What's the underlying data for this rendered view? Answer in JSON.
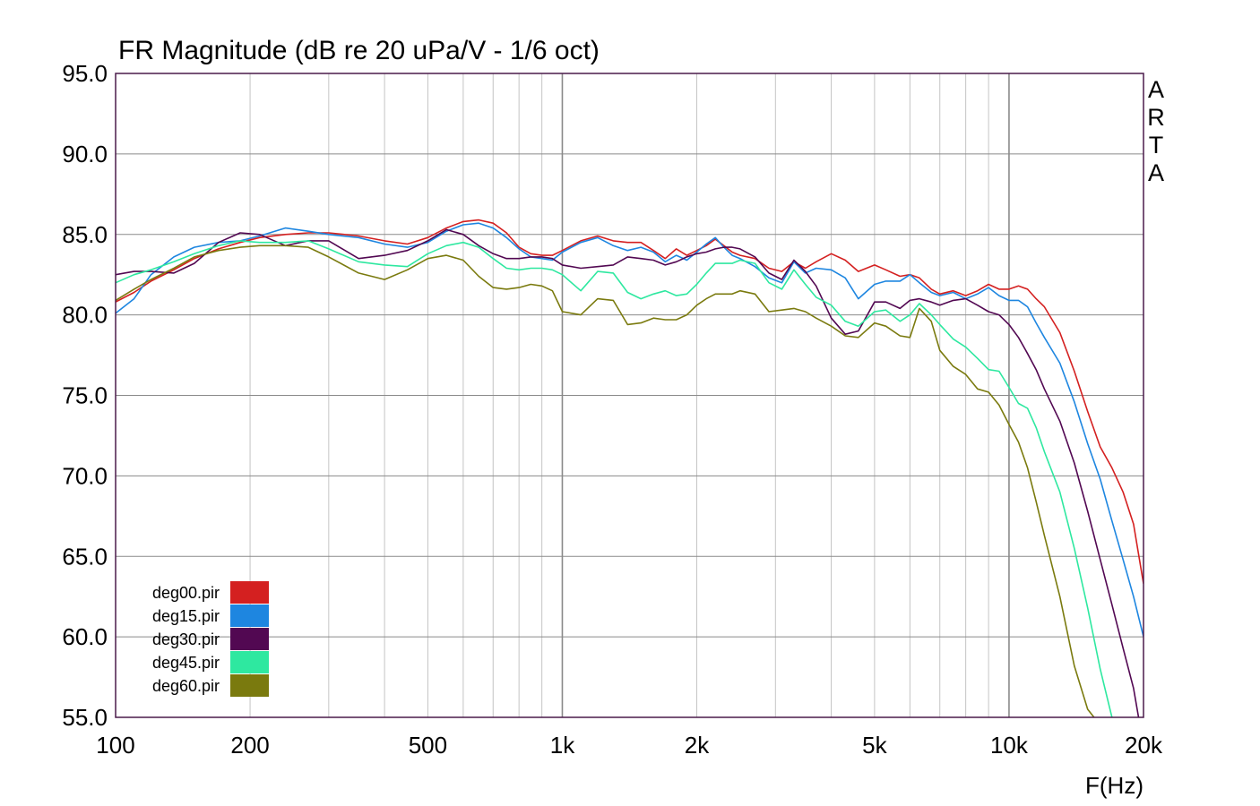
{
  "chart_data": {
    "type": "line",
    "title": "FR Magnitude (dB re 20 uPa/V - 1/6 oct)",
    "xlabel": "F(Hz)",
    "ylabel": "",
    "watermark": "ARTA",
    "x_scale": "log",
    "xlim": [
      100,
      20000
    ],
    "ylim": [
      55,
      95
    ],
    "grid": true,
    "legend_position": "bottom-left",
    "x_ticks": [
      {
        "value": 100,
        "label": "100"
      },
      {
        "value": 200,
        "label": "200"
      },
      {
        "value": 500,
        "label": "500"
      },
      {
        "value": 1000,
        "label": "1k"
      },
      {
        "value": 2000,
        "label": "2k"
      },
      {
        "value": 5000,
        "label": "5k"
      },
      {
        "value": 10000,
        "label": "10k"
      },
      {
        "value": 20000,
        "label": "20k"
      }
    ],
    "y_ticks": [
      {
        "value": 95,
        "label": "95.0"
      },
      {
        "value": 90,
        "label": "90.0"
      },
      {
        "value": 85,
        "label": "85.0"
      },
      {
        "value": 80,
        "label": "80.0"
      },
      {
        "value": 75,
        "label": "75.0"
      },
      {
        "value": 70,
        "label": "70.0"
      },
      {
        "value": 65,
        "label": "65.0"
      },
      {
        "value": 60,
        "label": "60.0"
      },
      {
        "value": 55,
        "label": "55.0"
      }
    ],
    "series": [
      {
        "name": "deg00.pir",
        "color": "#d42020",
        "x": [
          100,
          110,
          120,
          135,
          150,
          170,
          190,
          210,
          240,
          270,
          300,
          350,
          400,
          450,
          500,
          550,
          600,
          650,
          700,
          750,
          800,
          850,
          900,
          950,
          1000,
          1100,
          1200,
          1300,
          1400,
          1500,
          1600,
          1700,
          1800,
          1900,
          2000,
          2100,
          2200,
          2300,
          2400,
          2500,
          2700,
          2900,
          3100,
          3300,
          3500,
          3700,
          4000,
          4300,
          4600,
          5000,
          5300,
          5700,
          6000,
          6300,
          6700,
          7000,
          7500,
          8000,
          8500,
          9000,
          9500,
          10000,
          10500,
          11000,
          11500,
          12000,
          13000,
          14000,
          15000,
          16000,
          17000,
          18000,
          19000,
          20000
        ],
        "y": [
          80.8,
          81.4,
          82.1,
          82.8,
          83.5,
          84.1,
          84.5,
          84.8,
          85.0,
          85.1,
          85.1,
          84.9,
          84.6,
          84.4,
          84.8,
          85.4,
          85.8,
          85.9,
          85.7,
          85.1,
          84.2,
          83.8,
          83.7,
          83.7,
          84.0,
          84.6,
          84.9,
          84.6,
          84.5,
          84.5,
          84.0,
          83.5,
          84.1,
          83.7,
          84.0,
          84.3,
          84.7,
          84.3,
          83.9,
          83.7,
          83.5,
          82.9,
          82.7,
          83.3,
          82.9,
          83.3,
          83.8,
          83.4,
          82.7,
          83.1,
          82.8,
          82.4,
          82.5,
          82.3,
          81.6,
          81.3,
          81.5,
          81.2,
          81.5,
          81.9,
          81.6,
          81.6,
          81.8,
          81.6,
          81.0,
          80.5,
          78.9,
          76.5,
          74.0,
          71.8,
          70.5,
          69.0,
          67.0,
          63.3
        ]
      },
      {
        "name": "deg15.pir",
        "color": "#1e86e0",
        "x": [
          100,
          110,
          120,
          135,
          150,
          170,
          190,
          210,
          240,
          270,
          300,
          350,
          400,
          450,
          500,
          550,
          600,
          650,
          700,
          750,
          800,
          850,
          900,
          950,
          1000,
          1100,
          1200,
          1300,
          1400,
          1500,
          1600,
          1700,
          1800,
          1900,
          2000,
          2100,
          2200,
          2300,
          2400,
          2500,
          2700,
          2900,
          3100,
          3300,
          3500,
          3700,
          4000,
          4300,
          4600,
          5000,
          5300,
          5700,
          6000,
          6300,
          6700,
          7000,
          7500,
          8000,
          8500,
          9000,
          9500,
          10000,
          10500,
          11000,
          11500,
          12000,
          13000,
          14000,
          15000,
          16000,
          17000,
          18000,
          19000,
          20000
        ],
        "y": [
          80.1,
          81.0,
          82.5,
          83.6,
          84.2,
          84.5,
          84.6,
          84.9,
          85.4,
          85.2,
          85.0,
          84.8,
          84.4,
          84.2,
          84.5,
          85.2,
          85.6,
          85.7,
          85.4,
          84.8,
          84.1,
          83.6,
          83.5,
          83.4,
          83.9,
          84.5,
          84.8,
          84.3,
          84.0,
          84.2,
          83.9,
          83.3,
          83.7,
          83.4,
          83.9,
          84.4,
          84.8,
          84.2,
          83.7,
          83.5,
          83.0,
          82.3,
          82.0,
          83.3,
          82.6,
          82.9,
          82.8,
          82.3,
          81.0,
          81.9,
          82.1,
          82.1,
          82.5,
          82.0,
          81.4,
          81.2,
          81.4,
          81.0,
          81.3,
          81.7,
          81.2,
          80.9,
          80.9,
          80.5,
          79.5,
          78.6,
          77.0,
          74.6,
          72.0,
          69.8,
          67.2,
          64.8,
          62.5,
          60.0
        ]
      },
      {
        "name": "deg30.pir",
        "color": "#520852",
        "x": [
          100,
          110,
          120,
          135,
          150,
          170,
          190,
          210,
          240,
          270,
          300,
          350,
          400,
          450,
          500,
          550,
          600,
          650,
          700,
          750,
          800,
          850,
          900,
          950,
          1000,
          1100,
          1200,
          1300,
          1400,
          1500,
          1600,
          1700,
          1800,
          1900,
          2000,
          2100,
          2200,
          2300,
          2400,
          2500,
          2700,
          2900,
          3100,
          3300,
          3500,
          3700,
          4000,
          4300,
          4600,
          5000,
          5300,
          5700,
          6000,
          6300,
          6700,
          7000,
          7500,
          8000,
          8500,
          9000,
          9500,
          10000,
          10500,
          11000,
          11500,
          12000,
          13000,
          14000,
          15000,
          16000,
          17000,
          18000,
          19000,
          19500
        ],
        "y": [
          82.5,
          82.7,
          82.7,
          82.6,
          83.2,
          84.5,
          85.1,
          85.0,
          84.3,
          84.6,
          84.6,
          83.5,
          83.7,
          84.0,
          84.6,
          85.3,
          85.0,
          84.3,
          83.8,
          83.5,
          83.5,
          83.6,
          83.6,
          83.5,
          83.1,
          82.9,
          83.0,
          83.1,
          83.6,
          83.5,
          83.4,
          83.1,
          83.3,
          83.6,
          83.8,
          83.9,
          84.1,
          84.2,
          84.2,
          84.1,
          83.6,
          82.6,
          82.2,
          83.4,
          82.7,
          81.8,
          79.8,
          78.8,
          79.0,
          80.8,
          80.8,
          80.4,
          80.9,
          81.0,
          80.8,
          80.6,
          80.9,
          81.0,
          80.6,
          80.2,
          80.0,
          79.4,
          78.6,
          77.6,
          76.6,
          75.4,
          73.4,
          70.8,
          67.8,
          64.8,
          62.0,
          59.3,
          56.8,
          55.0
        ]
      },
      {
        "name": "deg45.pir",
        "color": "#2ee8a0",
        "x": [
          100,
          110,
          120,
          135,
          150,
          170,
          190,
          210,
          240,
          270,
          300,
          350,
          400,
          450,
          500,
          550,
          600,
          650,
          700,
          750,
          800,
          850,
          900,
          950,
          1000,
          1100,
          1200,
          1300,
          1400,
          1500,
          1600,
          1700,
          1800,
          1900,
          2000,
          2100,
          2200,
          2300,
          2400,
          2500,
          2700,
          2900,
          3100,
          3300,
          3500,
          3700,
          4000,
          4300,
          4600,
          5000,
          5300,
          5700,
          6000,
          6300,
          6700,
          7000,
          7500,
          8000,
          8500,
          9000,
          9500,
          10000,
          10500,
          11000,
          11500,
          12000,
          13000,
          14000,
          15000,
          16000,
          17000
        ],
        "y": [
          82.0,
          82.5,
          82.8,
          83.3,
          83.8,
          84.3,
          84.6,
          84.5,
          84.5,
          84.6,
          84.1,
          83.3,
          83.1,
          83.0,
          83.8,
          84.3,
          84.5,
          84.2,
          83.5,
          82.9,
          82.8,
          82.9,
          82.9,
          82.8,
          82.5,
          81.5,
          82.7,
          82.6,
          81.4,
          81.0,
          81.3,
          81.5,
          81.2,
          81.3,
          81.9,
          82.6,
          83.2,
          83.2,
          83.2,
          83.4,
          83.2,
          82.0,
          81.6,
          82.8,
          81.9,
          81.1,
          80.6,
          79.6,
          79.3,
          80.2,
          80.3,
          79.6,
          80.0,
          80.7,
          80.0,
          79.4,
          78.5,
          78.0,
          77.3,
          76.6,
          76.5,
          75.5,
          74.5,
          74.2,
          73.0,
          71.5,
          69.0,
          65.5,
          61.8,
          58.0,
          55.0
        ]
      },
      {
        "name": "deg60.pir",
        "color": "#7a7a0e",
        "x": [
          100,
          110,
          120,
          135,
          150,
          170,
          190,
          210,
          240,
          270,
          300,
          350,
          400,
          450,
          500,
          550,
          600,
          650,
          700,
          750,
          800,
          850,
          900,
          950,
          1000,
          1100,
          1200,
          1300,
          1400,
          1500,
          1600,
          1700,
          1800,
          1900,
          2000,
          2100,
          2200,
          2300,
          2400,
          2500,
          2700,
          2900,
          3100,
          3300,
          3500,
          3700,
          4000,
          4300,
          4600,
          5000,
          5300,
          5700,
          6000,
          6300,
          6700,
          7000,
          7500,
          8000,
          8500,
          9000,
          9500,
          10000,
          10500,
          11000,
          11500,
          12000,
          13000,
          14000,
          15000,
          15500
        ],
        "y": [
          80.9,
          81.6,
          82.2,
          82.9,
          83.6,
          84.0,
          84.2,
          84.3,
          84.3,
          84.2,
          83.6,
          82.6,
          82.2,
          82.8,
          83.5,
          83.7,
          83.4,
          82.4,
          81.7,
          81.6,
          81.7,
          81.9,
          81.8,
          81.5,
          80.2,
          80.0,
          81.0,
          80.9,
          79.4,
          79.5,
          79.8,
          79.7,
          79.7,
          80.0,
          80.6,
          81.0,
          81.3,
          81.3,
          81.3,
          81.5,
          81.3,
          80.2,
          80.3,
          80.4,
          80.2,
          79.8,
          79.3,
          78.7,
          78.6,
          79.5,
          79.3,
          78.7,
          78.6,
          80.4,
          79.6,
          77.8,
          76.8,
          76.3,
          75.4,
          75.2,
          74.4,
          73.2,
          72.1,
          70.5,
          68.4,
          66.3,
          62.5,
          58.2,
          55.5,
          55.0
        ]
      }
    ]
  }
}
